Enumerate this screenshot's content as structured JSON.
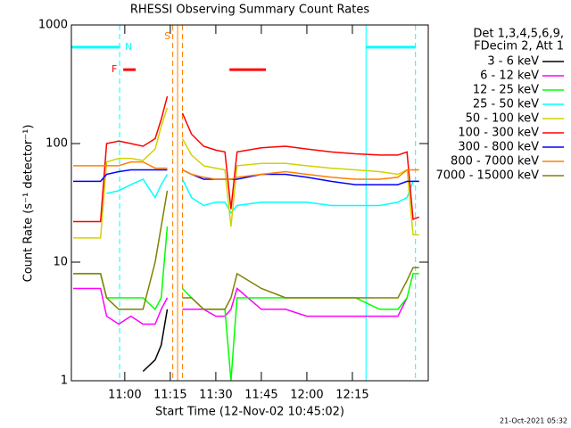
{
  "chart_data": {
    "type": "line",
    "title": "RHESSI Observing Summary Count Rates",
    "x_label": "Start Time (12-Nov-02 10:45:02)",
    "y_label": "Count Rate (s⁻¹ detector⁻¹)",
    "legend_title": [
      "Det 1,3,4,5,6,9,",
      "FDecim 2, Att 1"
    ],
    "footer": "21-Oct-2021 05:32",
    "log_y": true,
    "xlim": [
      42.4,
      160
    ],
    "ylim": [
      1,
      1000
    ],
    "yticks": [
      1,
      10,
      100,
      1000
    ],
    "xticks": [
      {
        "value": 60,
        "label": "11:00"
      },
      {
        "value": 75,
        "label": "11:15"
      },
      {
        "value": 90,
        "label": "11:30"
      },
      {
        "value": 105,
        "label": "11:45"
      },
      {
        "value": 120,
        "label": "12:00"
      },
      {
        "value": 135,
        "label": "12:15"
      }
    ],
    "x": [
      43,
      48,
      52,
      54,
      58,
      62,
      66,
      70,
      72,
      74,
      76,
      79,
      82,
      86,
      90,
      93,
      95,
      97,
      105,
      113,
      120,
      128,
      136,
      144,
      150,
      153,
      155,
      157
    ],
    "series": [
      {
        "name": "3 - 6 keV",
        "color": "#000000",
        "values": [
          null,
          null,
          null,
          null,
          null,
          null,
          1.2,
          1.5,
          2,
          4,
          null,
          null,
          null,
          null,
          null,
          null,
          null,
          null,
          null,
          null,
          null,
          null,
          null,
          null,
          null,
          null,
          null,
          null
        ]
      },
      {
        "name": "6 - 12 keV",
        "color": "#ff00ff",
        "values": [
          6,
          6,
          6,
          3.5,
          3,
          3.5,
          3,
          3,
          4,
          5,
          null,
          4,
          4,
          4,
          3.5,
          3.5,
          4,
          6,
          4,
          4,
          3.5,
          3.5,
          3.5,
          3.5,
          3.5,
          5,
          null,
          null
        ]
      },
      {
        "name": "12 - 25 keV",
        "color": "#00ff00",
        "values": [
          8,
          8,
          8,
          5,
          5,
          5,
          5,
          4,
          5,
          20,
          null,
          6,
          5,
          4,
          4,
          4,
          1,
          5,
          5,
          5,
          5,
          5,
          5,
          4,
          4,
          5,
          8,
          8
        ]
      },
      {
        "name": "25 - 50 keV",
        "color": "#00ffff",
        "values": [
          null,
          null,
          null,
          38,
          40,
          45,
          50,
          35,
          45,
          55,
          null,
          50,
          35,
          30,
          32,
          32,
          26,
          30,
          32,
          32,
          32,
          30,
          30,
          30,
          32,
          35,
          48,
          48
        ]
      },
      {
        "name": "50 - 100 keV",
        "color": "#d2d200",
        "values": [
          16,
          16,
          16,
          70,
          75,
          75,
          72,
          90,
          140,
          200,
          null,
          110,
          80,
          65,
          62,
          60,
          20,
          65,
          68,
          68,
          65,
          62,
          60,
          58,
          55,
          60,
          17,
          17
        ]
      },
      {
        "name": "100 - 300 keV",
        "color": "#ff0000",
        "values": [
          22,
          22,
          22,
          100,
          105,
          100,
          95,
          110,
          160,
          250,
          null,
          180,
          120,
          95,
          88,
          85,
          28,
          85,
          92,
          95,
          90,
          85,
          82,
          80,
          80,
          85,
          23,
          24
        ]
      },
      {
        "name": "300 - 800 keV",
        "color": "#0000ff",
        "values": [
          48,
          48,
          48,
          55,
          58,
          60,
          60,
          60,
          60,
          60,
          null,
          60,
          55,
          50,
          50,
          50,
          50,
          50,
          55,
          55,
          52,
          48,
          45,
          45,
          45,
          48,
          48,
          48
        ]
      },
      {
        "name": "800 - 7000 keV",
        "color": "#ff8000",
        "values": [
          65,
          65,
          65,
          65,
          65,
          70,
          70,
          62,
          62,
          62,
          null,
          60,
          55,
          52,
          50,
          50,
          50,
          52,
          55,
          58,
          55,
          52,
          50,
          50,
          52,
          60,
          60,
          60
        ]
      },
      {
        "name": "7000 - 15000 keV",
        "color": "#808000",
        "values": [
          8,
          8,
          8,
          5,
          4,
          4,
          4,
          10,
          20,
          40,
          null,
          5,
          5,
          4,
          4,
          4,
          5,
          8,
          6,
          5,
          5,
          5,
          5,
          5,
          5,
          7,
          9,
          9
        ]
      }
    ],
    "flags": [
      {
        "label": "F",
        "color": "#ff0000",
        "level": 420,
        "intervals": [
          [
            59.5,
            63.6
          ],
          [
            94.5,
            106.5
          ]
        ]
      },
      {
        "label": "N",
        "color": "#00ffff",
        "level": 650,
        "dashed": [
          58.3,
          155.8
        ],
        "solid": [
          139.5
        ],
        "intervals": [
          [
            42.4,
            58.3
          ],
          [
            139.5,
            155.8
          ]
        ]
      },
      {
        "label": "S",
        "color": "#ff8000",
        "dashed": [
          75.8,
          79
        ],
        "solid": [
          77.4
        ]
      }
    ]
  }
}
